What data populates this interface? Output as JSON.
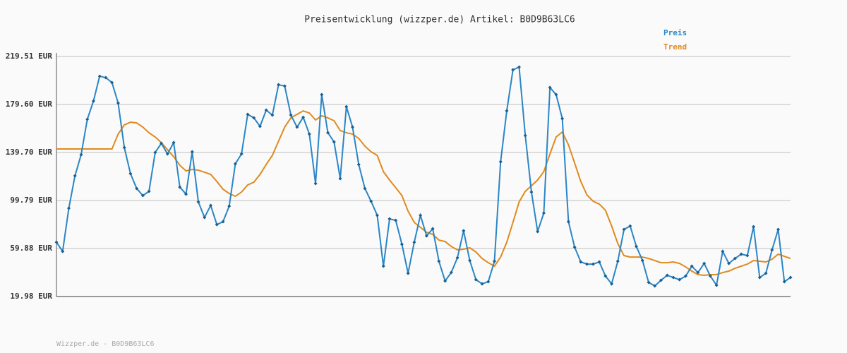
{
  "chart_data": {
    "type": "line",
    "title": "Preisentwicklung (wizzper.de) Artikel: B0D9B63LC6",
    "footer": "Wizzper.de - B0D9B63LC6",
    "legend": "top-right",
    "grid": true,
    "ylim": [
      19.98,
      219.51
    ],
    "yticks": [
      {
        "value": 19.98,
        "label": "19.98 EUR"
      },
      {
        "value": 59.88,
        "label": "59.88 EUR"
      },
      {
        "value": 99.79,
        "label": "99.79 EUR"
      },
      {
        "value": 139.7,
        "label": "139.70 EUR"
      },
      {
        "value": 179.6,
        "label": "179.60 EUR"
      },
      {
        "value": 219.51,
        "label": "219.51 EUR"
      }
    ],
    "series": [
      {
        "name": "Preis",
        "color": "#2a86c6",
        "markers": true,
        "values": [
          65.1,
          57.5,
          93.3,
          120.3,
          137.9,
          167.3,
          182.5,
          203.1,
          201.9,
          197.8,
          180.8,
          143.8,
          122.1,
          109.8,
          103.9,
          107.4,
          139.7,
          147.3,
          138.5,
          147.9,
          110.9,
          105.1,
          140.3,
          98.6,
          85.7,
          95.7,
          79.8,
          82.2,
          95.1,
          130.3,
          138.5,
          171.4,
          168.5,
          161.4,
          174.9,
          170.8,
          196.0,
          194.9,
          170.8,
          160.8,
          169.0,
          155.0,
          113.9,
          187.8,
          156.1,
          148.5,
          118.0,
          177.8,
          160.8,
          129.7,
          109.8,
          99.2,
          87.5,
          45.2,
          84.5,
          83.3,
          63.4,
          39.3,
          65.1,
          87.5,
          70.4,
          76.3,
          49.3,
          32.9,
          39.9,
          52.2,
          74.6,
          49.9,
          34.0,
          30.5,
          32.3,
          49.3,
          132.0,
          174.3,
          208.4,
          210.7,
          153.8,
          106.8,
          74.0,
          89.3,
          193.7,
          187.8,
          167.9,
          82.2,
          61.0,
          48.7,
          46.9,
          46.9,
          48.7,
          37.0,
          30.5,
          49.3,
          75.7,
          78.6,
          61.6,
          49.9,
          31.7,
          28.8,
          33.5,
          37.6,
          35.8,
          34.0,
          37.0,
          45.2,
          39.9,
          47.5,
          37.0,
          29.4,
          57.5,
          47.5,
          51.6,
          55.2,
          54.0,
          78.0,
          35.8,
          39.3,
          58.7,
          75.7,
          32.3,
          35.8
        ]
      },
      {
        "name": "Trend",
        "color": "#e08a1e",
        "markers": false,
        "values": [
          142.6,
          142.6,
          142.6,
          142.6,
          142.6,
          142.6,
          142.6,
          142.6,
          142.6,
          142.6,
          155.0,
          162.6,
          164.9,
          164.3,
          160.8,
          156.1,
          152.6,
          147.9,
          142.0,
          136.2,
          129.1,
          124.4,
          125.6,
          125.0,
          123.3,
          121.5,
          115.6,
          109.2,
          105.6,
          103.3,
          106.8,
          112.7,
          115.0,
          121.5,
          129.7,
          137.3,
          149.1,
          160.8,
          168.5,
          171.4,
          174.3,
          172.5,
          166.7,
          170.2,
          168.5,
          166.1,
          157.9,
          156.1,
          155.0,
          151.4,
          145.0,
          140.3,
          137.3,
          123.8,
          116.8,
          110.4,
          103.9,
          91.0,
          81.6,
          77.5,
          73.4,
          71.6,
          66.9,
          65.7,
          61.6,
          58.7,
          59.3,
          60.5,
          57.0,
          51.6,
          48.1,
          45.2,
          52.8,
          65.1,
          81.6,
          98.6,
          107.4,
          112.1,
          116.8,
          123.8,
          138.5,
          152.6,
          156.7,
          146.1,
          130.9,
          115.6,
          104.4,
          99.2,
          96.8,
          91.6,
          78.6,
          64.0,
          54.0,
          52.8,
          52.8,
          52.8,
          51.6,
          49.9,
          48.1,
          48.1,
          48.7,
          47.5,
          44.6,
          41.1,
          38.2,
          37.6,
          38.2,
          38.2,
          39.9,
          41.1,
          43.4,
          45.2,
          46.9,
          49.9,
          49.3,
          48.7,
          51.0,
          55.2,
          53.4,
          51.6
        ]
      }
    ]
  }
}
